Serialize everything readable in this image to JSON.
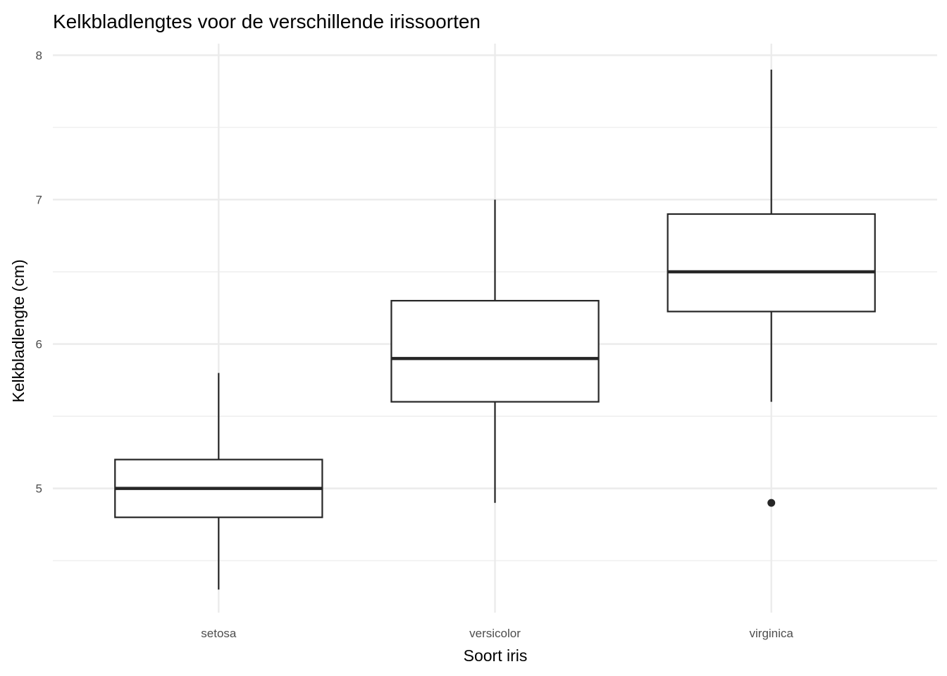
{
  "chart_data": {
    "type": "boxplot",
    "title": "Kelkbladlengtes voor de verschillende irissoorten",
    "xlabel": "Soort iris",
    "ylabel": "Kelkbladlengte (cm)",
    "categories": [
      "setosa",
      "versicolor",
      "virginica"
    ],
    "boxes": [
      {
        "category": "setosa",
        "whisker_low": 4.3,
        "q1": 4.8,
        "median": 5.0,
        "q3": 5.2,
        "whisker_high": 5.8,
        "outliers": []
      },
      {
        "category": "versicolor",
        "whisker_low": 4.9,
        "q1": 5.6,
        "median": 5.9,
        "q3": 6.3,
        "whisker_high": 7.0,
        "outliers": []
      },
      {
        "category": "virginica",
        "whisker_low": 5.6,
        "q1": 6.225,
        "median": 6.5,
        "q3": 6.9,
        "whisker_high": 7.9,
        "outliers": [
          4.9
        ]
      }
    ],
    "ylim": [
      4.14,
      8.08
    ],
    "yticks": [
      5,
      6,
      7,
      8
    ],
    "yticks_minor": [
      4.5,
      5.5,
      6.5,
      7.5
    ],
    "grid": true,
    "legend": "none",
    "colors": {
      "box_line": "#262626",
      "grid": "#ebebeb",
      "tick_text": "#4d4d4d"
    }
  }
}
